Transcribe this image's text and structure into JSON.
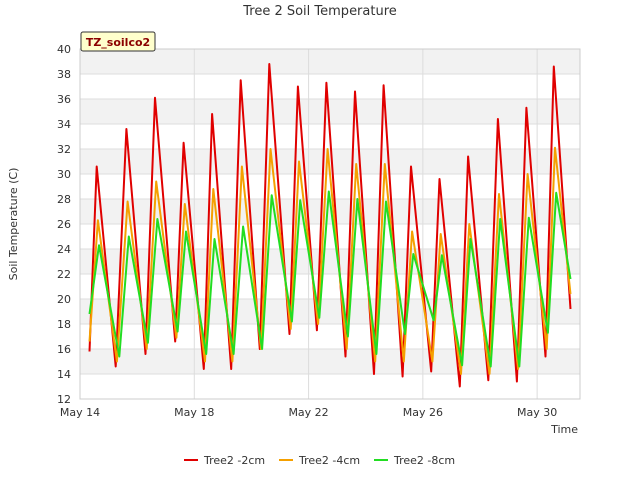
{
  "chart_data": {
    "type": "line",
    "title": "Tree 2 Soil Temperature",
    "xlabel": "Time",
    "ylabel": "Soil Temperature (C)",
    "badge": "TZ_soilco2",
    "xlim": [
      "2019-05-14",
      "2019-05-31T12:00"
    ],
    "ylim": [
      12,
      40
    ],
    "x_ticks": [
      "May 14",
      "May 18",
      "May 22",
      "May 26",
      "May 30"
    ],
    "x_tick_dates": [
      "2019-05-14",
      "2019-05-18",
      "2019-05-22",
      "2019-05-26",
      "2019-05-30"
    ],
    "y_ticks": [
      12,
      14,
      16,
      18,
      20,
      22,
      24,
      26,
      28,
      30,
      32,
      34,
      36,
      38,
      40
    ],
    "grid": true,
    "legend_position": "bottom",
    "series": [
      {
        "name": "Tree2 -2cm",
        "color": "#e00000",
        "points": [
          [
            "2019-05-14T08:00",
            15.8
          ],
          [
            "2019-05-14T14:00",
            30.6
          ],
          [
            "2019-05-15T06:00",
            14.6
          ],
          [
            "2019-05-15T15:00",
            33.6
          ],
          [
            "2019-05-16T07:00",
            15.6
          ],
          [
            "2019-05-16T15:00",
            36.1
          ],
          [
            "2019-05-17T08:00",
            16.6
          ],
          [
            "2019-05-17T15:00",
            32.5
          ],
          [
            "2019-05-18T08:00",
            14.4
          ],
          [
            "2019-05-18T15:00",
            34.8
          ],
          [
            "2019-05-19T07:00",
            14.4
          ],
          [
            "2019-05-19T15:00",
            37.5
          ],
          [
            "2019-05-20T07:00",
            16.0
          ],
          [
            "2019-05-20T15:00",
            38.8
          ],
          [
            "2019-05-21T08:00",
            17.2
          ],
          [
            "2019-05-21T15:00",
            37.0
          ],
          [
            "2019-05-22T07:00",
            17.5
          ],
          [
            "2019-05-22T15:00",
            37.3
          ],
          [
            "2019-05-23T07:00",
            15.4
          ],
          [
            "2019-05-23T15:00",
            36.6
          ],
          [
            "2019-05-24T07:00",
            14.0
          ],
          [
            "2019-05-24T15:00",
            37.1
          ],
          [
            "2019-05-25T07:00",
            13.8
          ],
          [
            "2019-05-25T14:00",
            30.6
          ],
          [
            "2019-05-26T07:00",
            14.2
          ],
          [
            "2019-05-26T14:00",
            29.6
          ],
          [
            "2019-05-27T07:00",
            13.0
          ],
          [
            "2019-05-27T14:00",
            31.4
          ],
          [
            "2019-05-28T07:00",
            13.5
          ],
          [
            "2019-05-28T15:00",
            34.4
          ],
          [
            "2019-05-29T07:00",
            13.4
          ],
          [
            "2019-05-29T15:00",
            35.3
          ],
          [
            "2019-05-30T07:00",
            15.4
          ],
          [
            "2019-05-30T14:00",
            38.6
          ],
          [
            "2019-05-31T04:00",
            19.2
          ]
        ]
      },
      {
        "name": "Tree2 -4cm",
        "color": "#f5a000",
        "points": [
          [
            "2019-05-14T08:00",
            16.6
          ],
          [
            "2019-05-14T15:00",
            26.3
          ],
          [
            "2019-05-15T07:00",
            15.0
          ],
          [
            "2019-05-15T16:00",
            27.8
          ],
          [
            "2019-05-16T08:00",
            16.0
          ],
          [
            "2019-05-16T16:00",
            29.4
          ],
          [
            "2019-05-17T09:00",
            16.9
          ],
          [
            "2019-05-17T16:00",
            27.6
          ],
          [
            "2019-05-18T09:00",
            15.0
          ],
          [
            "2019-05-18T16:00",
            28.8
          ],
          [
            "2019-05-19T08:00",
            15.0
          ],
          [
            "2019-05-19T16:00",
            30.6
          ],
          [
            "2019-05-20T08:00",
            16.0
          ],
          [
            "2019-05-20T16:00",
            32.0
          ],
          [
            "2019-05-21T09:00",
            17.6
          ],
          [
            "2019-05-21T16:00",
            31.0
          ],
          [
            "2019-05-22T08:00",
            18.0
          ],
          [
            "2019-05-22T16:00",
            32.0
          ],
          [
            "2019-05-23T08:00",
            16.0
          ],
          [
            "2019-05-23T16:00",
            30.8
          ],
          [
            "2019-05-24T08:00",
            15.0
          ],
          [
            "2019-05-24T16:00",
            30.8
          ],
          [
            "2019-05-25T08:00",
            15.0
          ],
          [
            "2019-05-25T15:00",
            25.4
          ],
          [
            "2019-05-26T08:00",
            15.0
          ],
          [
            "2019-05-26T15:00",
            25.2
          ],
          [
            "2019-05-27T08:00",
            14.0
          ],
          [
            "2019-05-27T15:00",
            26.0
          ],
          [
            "2019-05-28T08:00",
            14.0
          ],
          [
            "2019-05-28T16:00",
            28.4
          ],
          [
            "2019-05-29T08:00",
            14.4
          ],
          [
            "2019-05-29T16:00",
            30.0
          ],
          [
            "2019-05-30T08:00",
            16.0
          ],
          [
            "2019-05-30T15:00",
            32.1
          ],
          [
            "2019-05-31T04:00",
            20.4
          ]
        ]
      },
      {
        "name": "Tree2 -8cm",
        "color": "#22dd22",
        "points": [
          [
            "2019-05-14T08:00",
            18.8
          ],
          [
            "2019-05-14T16:00",
            24.3
          ],
          [
            "2019-05-15T09:00",
            15.4
          ],
          [
            "2019-05-15T17:00",
            25.0
          ],
          [
            "2019-05-16T09:00",
            16.5
          ],
          [
            "2019-05-16T17:00",
            26.4
          ],
          [
            "2019-05-17T10:00",
            17.4
          ],
          [
            "2019-05-17T17:00",
            25.4
          ],
          [
            "2019-05-18T10:00",
            15.6
          ],
          [
            "2019-05-18T17:00",
            24.8
          ],
          [
            "2019-05-19T09:00",
            15.6
          ],
          [
            "2019-05-19T17:00",
            25.8
          ],
          [
            "2019-05-20T09:00",
            16.0
          ],
          [
            "2019-05-20T17:00",
            28.3
          ],
          [
            "2019-05-21T10:00",
            18.2
          ],
          [
            "2019-05-21T17:00",
            27.9
          ],
          [
            "2019-05-22T09:00",
            18.5
          ],
          [
            "2019-05-22T17:00",
            28.6
          ],
          [
            "2019-05-23T09:00",
            17.0
          ],
          [
            "2019-05-23T17:00",
            28.0
          ],
          [
            "2019-05-24T09:00",
            15.6
          ],
          [
            "2019-05-24T17:00",
            27.8
          ],
          [
            "2019-05-25T09:00",
            17.2
          ],
          [
            "2019-05-25T16:00",
            23.6
          ],
          [
            "2019-05-26T09:00",
            18.3
          ],
          [
            "2019-05-26T16:00",
            23.5
          ],
          [
            "2019-05-27T09:00",
            14.7
          ],
          [
            "2019-05-27T16:00",
            24.8
          ],
          [
            "2019-05-28T09:00",
            14.6
          ],
          [
            "2019-05-28T17:00",
            26.4
          ],
          [
            "2019-05-29T09:00",
            14.6
          ],
          [
            "2019-05-29T17:00",
            26.5
          ],
          [
            "2019-05-30T09:00",
            17.3
          ],
          [
            "2019-05-30T16:00",
            28.5
          ],
          [
            "2019-05-31T04:00",
            21.6
          ]
        ]
      }
    ]
  }
}
